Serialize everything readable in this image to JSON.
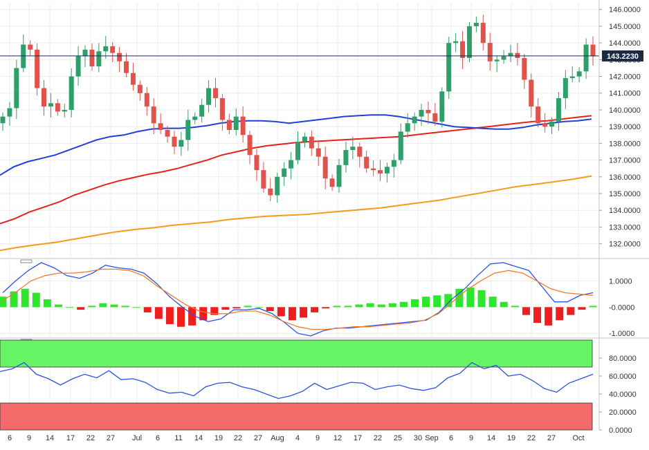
{
  "chart_data": [
    {
      "type": "candlestick",
      "title": "",
      "price_label": "143.2230",
      "current_price": 143.223,
      "ylim": [
        131.2,
        146.4
      ],
      "y_ticks": [
        132,
        133,
        134,
        135,
        136,
        137,
        138,
        139,
        140,
        141,
        142,
        143,
        144,
        145,
        146
      ],
      "y_tick_labels": [
        "132.0000",
        "133.0000",
        "134.0000",
        "135.0000",
        "136.0000",
        "137.0000",
        "138.0000",
        "139.0000",
        "140.0000",
        "141.0000",
        "142.0000",
        "143.0000",
        "144.0000",
        "145.0000",
        "146.0000"
      ],
      "x_labels": [
        "6",
        "9",
        "14",
        "17",
        "22",
        "27",
        "Jul",
        "6",
        "11",
        "14",
        "19",
        "22",
        "27",
        "Aug",
        "4",
        "9",
        "12",
        "17",
        "22",
        "25",
        "30",
        "Sep",
        "6",
        "9",
        "14",
        "19",
        "22",
        "27",
        "Oct"
      ],
      "grid": true,
      "colors": {
        "up": "#2e9e6b",
        "down": "#e0524c",
        "ma_blue": "#1f3fd6",
        "ma_red": "#e8201b",
        "ma_orange": "#f59a1b"
      },
      "ma_blue": [
        136.1,
        136.6,
        136.9,
        137.1,
        137.3,
        137.6,
        137.9,
        138.2,
        138.4,
        138.5,
        138.7,
        138.85,
        138.9,
        138.9,
        138.95,
        139.05,
        139.2,
        139.3,
        139.35,
        139.35,
        139.3,
        139.2,
        139.3,
        139.4,
        139.5,
        139.6,
        139.65,
        139.7,
        139.7,
        139.6,
        139.45,
        139.3,
        139.15,
        139.0,
        138.95,
        138.9,
        138.85,
        138.85,
        138.95,
        139.1,
        139.2,
        139.3,
        139.35,
        139.45
      ],
      "ma_red": [
        133.2,
        133.5,
        133.9,
        134.2,
        134.5,
        134.9,
        135.2,
        135.5,
        135.75,
        135.95,
        136.15,
        136.3,
        136.5,
        136.75,
        137.0,
        137.3,
        137.5,
        137.7,
        137.85,
        137.95,
        138.05,
        138.1,
        138.15,
        138.2,
        138.25,
        138.3,
        138.35,
        138.4,
        138.5,
        138.6,
        138.7,
        138.8,
        138.9,
        139.0,
        139.1,
        139.2,
        139.3,
        139.35,
        139.45,
        139.55,
        139.65
      ],
      "ma_orange": [
        131.6,
        131.8,
        131.95,
        132.1,
        132.3,
        132.5,
        132.7,
        132.85,
        132.95,
        133.1,
        133.2,
        133.3,
        133.45,
        133.55,
        133.65,
        133.7,
        133.75,
        133.85,
        133.95,
        134.05,
        134.15,
        134.3,
        134.45,
        134.6,
        134.8,
        135.0,
        135.2,
        135.4,
        135.55,
        135.7,
        135.85,
        136.05
      ]
    },
    {
      "type": "line",
      "title": "",
      "y_tick_labels": [
        "1.0000",
        "-0.0000",
        "-1.0000"
      ],
      "y_ticks": [
        1,
        0,
        -1
      ],
      "ylim": [
        -1.1,
        1.75
      ],
      "series": [
        {
          "color": "#2a52e0",
          "values": [
            0.55,
            1.0,
            1.4,
            1.7,
            1.5,
            1.2,
            1.1,
            1.3,
            1.6,
            1.5,
            1.45,
            1.3,
            0.9,
            0.4,
            0.0,
            -0.35,
            -0.55,
            -0.45,
            -0.1,
            -0.1,
            -0.05,
            -0.25,
            -0.6,
            -1.0,
            -1.1,
            -0.9,
            -0.8,
            -0.8,
            -0.75,
            -0.7,
            -0.65,
            -0.6,
            -0.55,
            -0.5,
            -0.2,
            0.3,
            0.7,
            1.2,
            1.65,
            1.7,
            1.55,
            1.4,
            0.8,
            0.2,
            0.2,
            0.45,
            0.55
          ]
        },
        {
          "color": "#f07a2b",
          "values": [
            0.25,
            0.6,
            1.0,
            1.2,
            1.3,
            1.3,
            1.35,
            1.45,
            1.45,
            1.4,
            1.2,
            0.8,
            0.45,
            0.1,
            -0.15,
            -0.25,
            -0.25,
            -0.15,
            -0.15,
            -0.3,
            -0.55,
            -0.75,
            -0.85,
            -0.85,
            -0.8,
            -0.75,
            -0.75,
            -0.7,
            -0.65,
            -0.6,
            -0.5,
            -0.25,
            0.2,
            0.65,
            1.0,
            1.3,
            1.4,
            1.3,
            1.0,
            0.7,
            0.55,
            0.5,
            0.45
          ]
        }
      ],
      "histogram": [
        0.4,
        0.6,
        0.7,
        0.55,
        0.3,
        0.1,
        0.0,
        -0.1,
        0.05,
        0.15,
        0.1,
        0.05,
        0.0,
        -0.2,
        -0.45,
        -0.65,
        -0.75,
        -0.7,
        -0.5,
        -0.3,
        -0.1,
        -0.05,
        0.05,
        0.0,
        -0.15,
        -0.35,
        -0.5,
        -0.4,
        -0.2,
        -0.05,
        0.05,
        0.05,
        0.1,
        0.15,
        0.1,
        0.15,
        0.2,
        0.3,
        0.4,
        0.45,
        0.5,
        0.7,
        0.75,
        0.65,
        0.4,
        0.2,
        0.05,
        -0.3,
        -0.6,
        -0.7,
        -0.5,
        -0.3,
        -0.1,
        0.05
      ]
    },
    {
      "type": "line",
      "title": "",
      "y_ticks": [
        80,
        60,
        40,
        20,
        0
      ],
      "y_tick_labels": [
        "80.0000",
        "60.0000",
        "40.0000",
        "20.0000",
        "0.0000"
      ],
      "ylim": [
        0,
        100
      ],
      "overbought_zone": [
        70,
        100
      ],
      "oversold_zone": [
        0,
        30
      ],
      "zone_colors": {
        "overbought": "#66f566",
        "oversold": "#f46a6a"
      },
      "series": [
        {
          "color": "#2a52e0",
          "values": [
            65,
            68,
            75,
            62,
            57,
            50,
            57,
            62,
            58,
            66,
            56,
            57,
            53,
            45,
            41,
            42,
            38,
            48,
            52,
            53,
            48,
            45,
            40,
            35,
            38,
            43,
            52,
            45,
            49,
            53,
            52,
            45,
            48,
            50,
            46,
            44,
            47,
            58,
            63,
            75,
            68,
            72,
            60,
            62,
            55,
            46,
            42,
            52,
            57,
            62
          ]
        }
      ]
    }
  ]
}
